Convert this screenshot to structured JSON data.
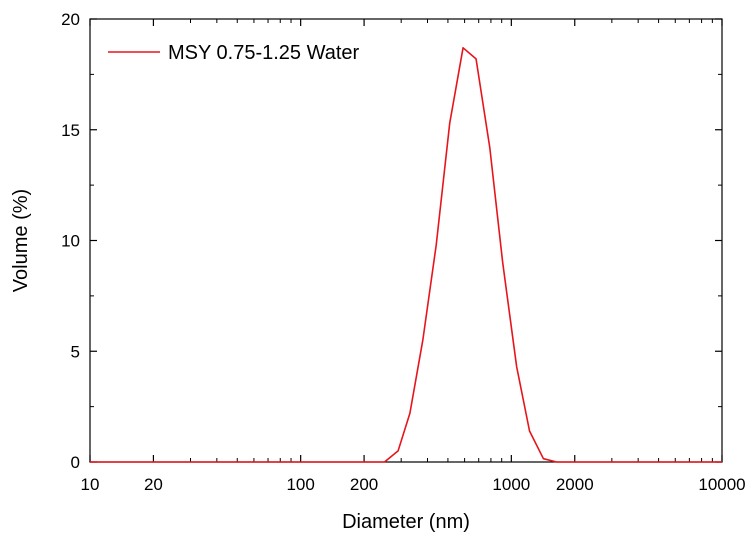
{
  "chart_data": {
    "type": "line",
    "xlabel": "Diameter (nm)",
    "ylabel": "Volume (%)",
    "x_scale": "log",
    "xlim": [
      10,
      10000
    ],
    "ylim": [
      0,
      20
    ],
    "x_ticks": [
      10,
      20,
      100,
      200,
      1000,
      2000,
      10000
    ],
    "x_tick_labels": [
      "10",
      "20",
      "100",
      "200",
      "1000",
      "2000",
      "10000"
    ],
    "y_ticks": [
      0,
      5,
      10,
      15,
      20
    ],
    "y_tick_labels": [
      "0",
      "5",
      "10",
      "15",
      "20"
    ],
    "grid": false,
    "legend_position": "top-left",
    "series": [
      {
        "name": "MSY 0.75-1.25 Water",
        "color": "#e8141b",
        "x": [
          10,
          200,
          250,
          290,
          330,
          380,
          440,
          510,
          590,
          680,
          790,
          910,
          1060,
          1220,
          1420,
          1640,
          1900,
          2200,
          10000
        ],
        "y": [
          0,
          0,
          0,
          0.5,
          2.2,
          5.5,
          9.8,
          15.3,
          18.7,
          18.2,
          14.2,
          9.0,
          4.3,
          1.4,
          0.15,
          0,
          0,
          0,
          0
        ]
      }
    ]
  }
}
